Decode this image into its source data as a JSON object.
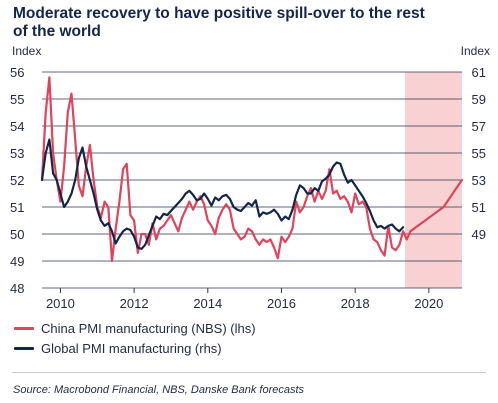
{
  "title": "Moderate recovery to have positive spill-over to the rest of the world",
  "source": "Source: Macrobond Financial, NBS, Danske Bank forecasts",
  "chart_data": {
    "type": "line",
    "left_axis": {
      "label": "Index",
      "ylim": [
        48,
        56
      ],
      "ticks": [
        48,
        49,
        50,
        51,
        52,
        53,
        54,
        55,
        56
      ]
    },
    "right_axis": {
      "label": "Index",
      "ylim": [
        45,
        61
      ],
      "ticks": [
        49,
        51,
        53,
        55,
        57,
        59,
        61
      ]
    },
    "x_axis": {
      "xlim": [
        2009.5,
        2020.9
      ],
      "ticks": [
        2010,
        2012,
        2014,
        2016,
        2018,
        2020
      ]
    },
    "grid": true,
    "forecast_region": {
      "from": 2019.35,
      "to": 2020.9,
      "color": "#f8d2d2"
    },
    "series": [
      {
        "name": "China PMI manufacturing (NBS) (lhs)",
        "axis": "left",
        "color": "#e0435a",
        "x": [
          2009.5,
          2009.6,
          2009.7,
          2009.8,
          2009.9,
          2010.0,
          2010.1,
          2010.2,
          2010.3,
          2010.4,
          2010.5,
          2010.6,
          2010.7,
          2010.8,
          2010.9,
          2011.0,
          2011.1,
          2011.2,
          2011.3,
          2011.4,
          2011.5,
          2011.6,
          2011.7,
          2011.8,
          2011.9,
          2012.0,
          2012.1,
          2012.2,
          2012.3,
          2012.4,
          2012.5,
          2012.6,
          2012.7,
          2012.8,
          2012.9,
          2013.0,
          2013.1,
          2013.2,
          2013.3,
          2013.4,
          2013.5,
          2013.6,
          2013.7,
          2013.8,
          2013.9,
          2014.0,
          2014.1,
          2014.2,
          2014.3,
          2014.4,
          2014.5,
          2014.6,
          2014.7,
          2014.8,
          2014.9,
          2015.0,
          2015.1,
          2015.2,
          2015.3,
          2015.4,
          2015.5,
          2015.6,
          2015.7,
          2015.8,
          2015.9,
          2016.0,
          2016.1,
          2016.2,
          2016.3,
          2016.4,
          2016.5,
          2016.6,
          2016.7,
          2016.8,
          2016.9,
          2017.0,
          2017.1,
          2017.2,
          2017.3,
          2017.4,
          2017.5,
          2017.6,
          2017.7,
          2017.8,
          2017.9,
          2018.0,
          2018.1,
          2018.2,
          2018.3,
          2018.4,
          2018.5,
          2018.6,
          2018.7,
          2018.8,
          2018.9,
          2019.0,
          2019.1,
          2019.2,
          2019.3,
          2019.4,
          2019.5,
          2019.6,
          2019.7,
          2019.8,
          2019.9,
          2020.0,
          2020.1,
          2020.2,
          2020.3,
          2020.4,
          2020.5,
          2020.6,
          2020.7,
          2020.8,
          2020.9
        ],
        "y": [
          52.0,
          54.5,
          55.8,
          53.0,
          52.0,
          51.2,
          52.5,
          54.5,
          55.2,
          53.5,
          51.8,
          51.4,
          52.5,
          53.3,
          52.0,
          51.0,
          50.6,
          51.2,
          51.0,
          49.0,
          50.2,
          51.2,
          52.4,
          52.6,
          50.7,
          50.5,
          49.3,
          50.0,
          50.0,
          49.6,
          50.4,
          49.8,
          50.2,
          50.3,
          50.5,
          50.7,
          50.4,
          50.1,
          50.6,
          50.9,
          51.2,
          50.9,
          51.2,
          51.4,
          51.1,
          50.5,
          50.3,
          50.0,
          50.6,
          50.9,
          51.1,
          50.9,
          50.2,
          50.0,
          49.8,
          49.9,
          50.2,
          50.1,
          49.8,
          49.6,
          49.8,
          49.7,
          49.8,
          49.5,
          49.1,
          49.9,
          49.7,
          49.9,
          50.2,
          51.2,
          50.8,
          51.0,
          51.4,
          51.7,
          51.2,
          51.6,
          51.3,
          51.6,
          52.4,
          51.5,
          51.6,
          51.3,
          51.4,
          51.2,
          50.8,
          51.5,
          51.1,
          51.2,
          51.0,
          50.2,
          49.8,
          49.7,
          49.4,
          49.2,
          50.3,
          49.5,
          49.4,
          49.6,
          50.1,
          49.8,
          50.1,
          50.2,
          50.3,
          50.4,
          50.5,
          50.6,
          50.7,
          50.8,
          50.9,
          51.0,
          51.2,
          51.4,
          51.6,
          51.8,
          52.0
        ]
      },
      {
        "name": "Global PMI manufacturing (rhs)",
        "axis": "right",
        "color": "#13264a",
        "x": [
          2009.5,
          2009.6,
          2009.7,
          2009.8,
          2009.9,
          2010.0,
          2010.1,
          2010.2,
          2010.3,
          2010.4,
          2010.5,
          2010.6,
          2010.7,
          2010.8,
          2010.9,
          2011.0,
          2011.1,
          2011.2,
          2011.3,
          2011.4,
          2011.5,
          2011.6,
          2011.7,
          2011.8,
          2011.9,
          2012.0,
          2012.1,
          2012.2,
          2012.3,
          2012.4,
          2012.5,
          2012.6,
          2012.7,
          2012.8,
          2012.9,
          2013.0,
          2013.1,
          2013.2,
          2013.3,
          2013.4,
          2013.5,
          2013.6,
          2013.7,
          2013.8,
          2013.9,
          2014.0,
          2014.1,
          2014.2,
          2014.3,
          2014.4,
          2014.5,
          2014.6,
          2014.7,
          2014.8,
          2014.9,
          2015.0,
          2015.1,
          2015.2,
          2015.3,
          2015.4,
          2015.5,
          2015.6,
          2015.7,
          2015.8,
          2015.9,
          2016.0,
          2016.1,
          2016.2,
          2016.3,
          2016.4,
          2016.5,
          2016.6,
          2016.7,
          2016.8,
          2016.9,
          2017.0,
          2017.1,
          2017.2,
          2017.3,
          2017.4,
          2017.5,
          2017.6,
          2017.7,
          2017.8,
          2017.9,
          2018.0,
          2018.1,
          2018.2,
          2018.3,
          2018.4,
          2018.5,
          2018.6,
          2018.7,
          2018.8,
          2018.9,
          2019.0,
          2019.1,
          2019.2,
          2019.3
        ],
        "y": [
          53.0,
          55.0,
          56.0,
          53.5,
          53.0,
          52.0,
          51.0,
          51.4,
          52.0,
          53.0,
          54.6,
          55.4,
          54.0,
          53.0,
          52.0,
          50.8,
          50.0,
          49.6,
          49.8,
          49.2,
          48.3,
          48.8,
          49.2,
          49.4,
          49.3,
          48.8,
          48.0,
          47.9,
          48.2,
          48.9,
          49.6,
          50.3,
          50.1,
          50.5,
          50.4,
          50.7,
          51.0,
          51.3,
          51.6,
          52.0,
          52.2,
          51.9,
          51.5,
          51.6,
          52.0,
          51.6,
          51.1,
          51.7,
          51.5,
          51.8,
          51.9,
          51.6,
          51.0,
          50.8,
          50.7,
          51.0,
          51.3,
          51.1,
          51.5,
          50.3,
          50.6,
          50.5,
          50.6,
          50.8,
          50.5,
          50.0,
          50.3,
          50.1,
          50.8,
          51.9,
          52.6,
          52.4,
          52.0,
          52.0,
          52.4,
          52.2,
          52.9,
          53.1,
          53.4,
          54.0,
          54.3,
          54.2,
          53.4,
          52.8,
          53.0,
          52.6,
          52.2,
          51.8,
          51.3,
          50.7,
          50.0,
          49.5,
          49.6,
          49.4,
          49.6,
          49.7,
          49.4,
          49.2,
          49.5
        ]
      }
    ]
  },
  "legend": [
    {
      "label": "China PMI manufacturing (NBS) (lhs)",
      "color": "#e0435a"
    },
    {
      "label": "Global PMI manufacturing (rhs)",
      "color": "#13264a"
    }
  ]
}
